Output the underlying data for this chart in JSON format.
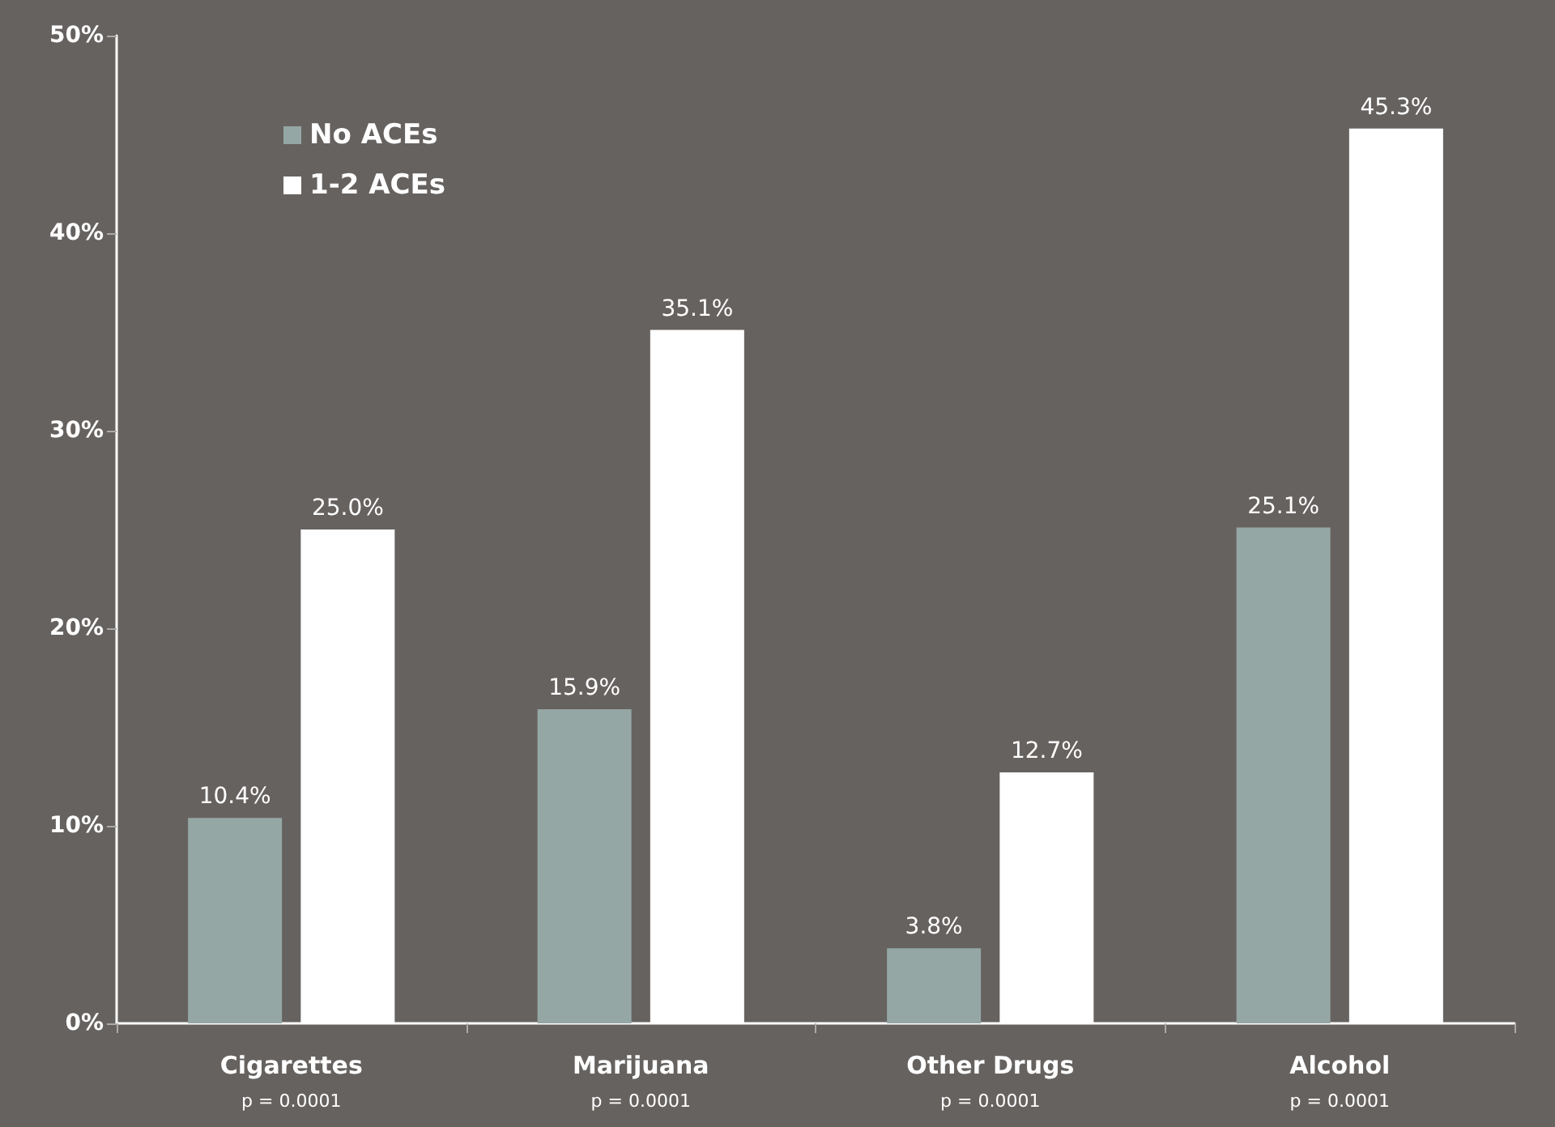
{
  "chart_data": {
    "type": "bar",
    "categories": [
      "Cigarettes",
      "Marijuana",
      "Other Drugs",
      "Alcohol"
    ],
    "series": [
      {
        "name": "No ACEs",
        "color": "#95a7a5",
        "values": [
          10.4,
          15.9,
          3.8,
          25.1
        ],
        "value_labels": [
          "10.4%",
          "15.9%",
          "3.8%",
          "25.1%"
        ]
      },
      {
        "name": "1-2 ACEs",
        "color": "#ffffff",
        "values": [
          25.0,
          35.1,
          12.7,
          45.3
        ],
        "value_labels": [
          "25.0%",
          "35.1%",
          "12.7%",
          "45.3%"
        ]
      }
    ],
    "ylim": [
      0,
      50
    ],
    "yticks": [
      {
        "value": 0,
        "label": "0%"
      },
      {
        "value": 10,
        "label": "10%"
      },
      {
        "value": 20,
        "label": "20%"
      },
      {
        "value": 30,
        "label": "30%"
      },
      {
        "value": 40,
        "label": "40%"
      },
      {
        "value": 50,
        "label": "50%"
      }
    ],
    "annotations": [
      "p = 0.0001",
      "p = 0.0001",
      "p = 0.0001",
      "p = 0.0001"
    ],
    "grid": false,
    "legend": "top left"
  }
}
